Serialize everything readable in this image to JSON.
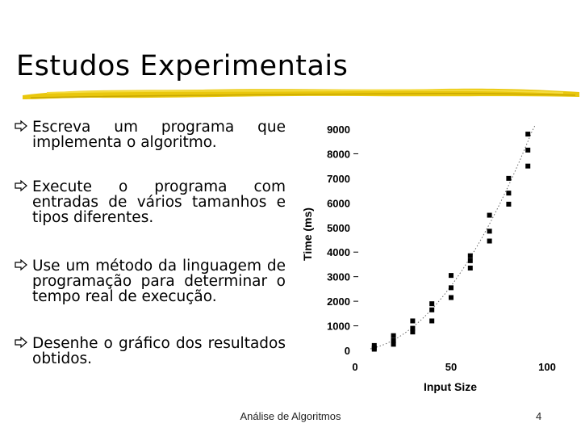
{
  "slide": {
    "title": "Estudos Experimentais",
    "bullets": [
      "Escreva um programa que implementa o algoritmo.",
      "Execute o programa com entradas de vários tamanhos e tipos diferentes.",
      "Use um método da linguagem de programação para determinar o tempo real de execução.",
      "Desenhe o gráfico dos resultados obtidos."
    ],
    "footer": "Análise de Algoritmos",
    "page_number": "4",
    "accent_color": "#e8c400"
  },
  "chart_data": {
    "type": "scatter",
    "title": "",
    "xlabel": "Input Size",
    "ylabel": "Time (ms)",
    "xlim": [
      0,
      100
    ],
    "ylim": [
      0,
      9000
    ],
    "x_ticks": [
      "0",
      "50",
      "100"
    ],
    "y_ticks": [
      "0",
      "1000",
      "2000",
      "3000",
      "4000",
      "5000",
      "6000",
      "7000",
      "8000",
      "9000"
    ],
    "trend_line": "dotted curve",
    "points": [
      {
        "x": 10,
        "y": 100
      },
      {
        "x": 10,
        "y": 200
      },
      {
        "x": 10,
        "y": 50
      },
      {
        "x": 20,
        "y": 600
      },
      {
        "x": 20,
        "y": 400
      },
      {
        "x": 20,
        "y": 250
      },
      {
        "x": 30,
        "y": 1200
      },
      {
        "x": 30,
        "y": 900
      },
      {
        "x": 30,
        "y": 750
      },
      {
        "x": 40,
        "y": 1900
      },
      {
        "x": 40,
        "y": 1650
      },
      {
        "x": 40,
        "y": 1200
      },
      {
        "x": 50,
        "y": 3050
      },
      {
        "x": 50,
        "y": 2550
      },
      {
        "x": 50,
        "y": 2150
      },
      {
        "x": 60,
        "y": 3850
      },
      {
        "x": 60,
        "y": 3650
      },
      {
        "x": 60,
        "y": 3350
      },
      {
        "x": 70,
        "y": 5500
      },
      {
        "x": 70,
        "y": 4850
      },
      {
        "x": 70,
        "y": 4450
      },
      {
        "x": 80,
        "y": 7000
      },
      {
        "x": 80,
        "y": 6400
      },
      {
        "x": 80,
        "y": 5950
      },
      {
        "x": 90,
        "y": 8800
      },
      {
        "x": 90,
        "y": 8150
      },
      {
        "x": 90,
        "y": 7500
      }
    ]
  }
}
